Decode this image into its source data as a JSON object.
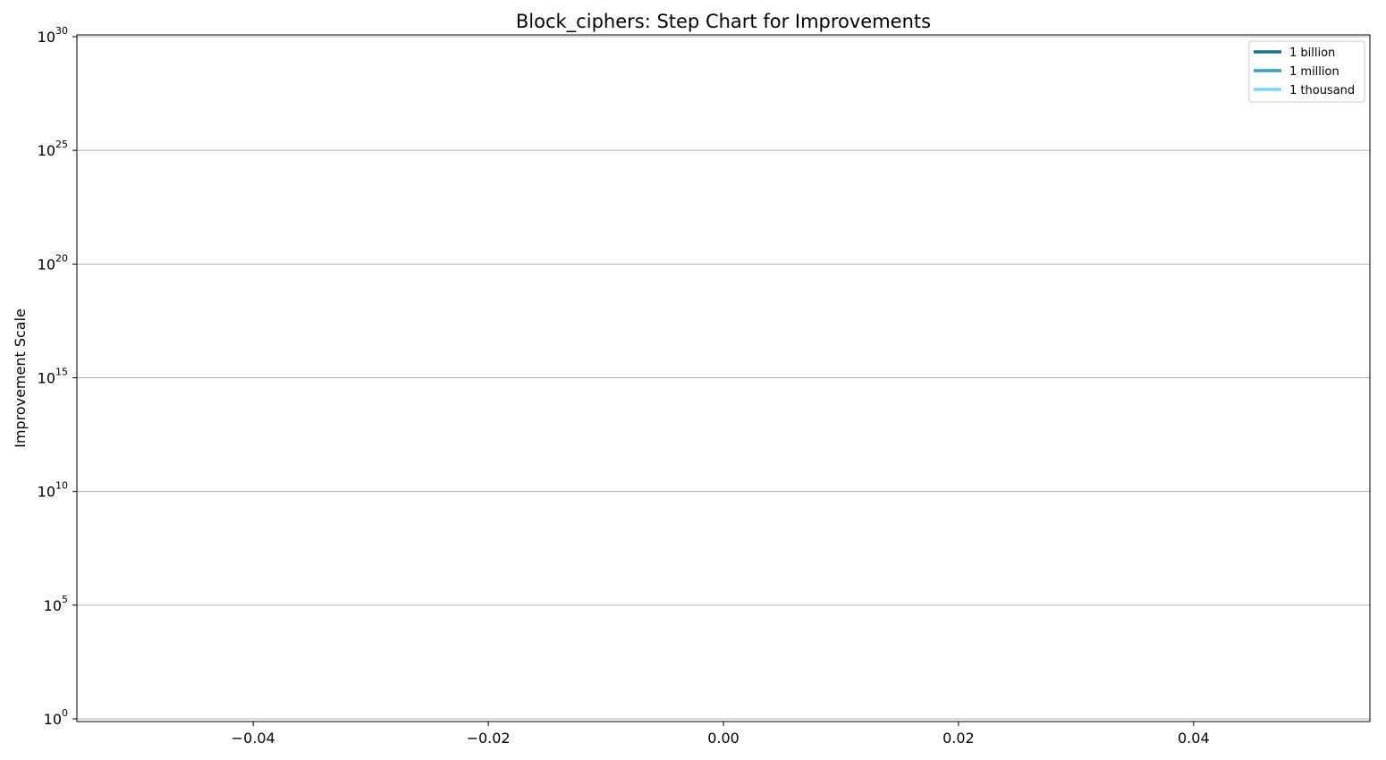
{
  "chart_data": {
    "type": "line",
    "title": "Block_ciphers: Step Chart for Improvements",
    "xlabel": "",
    "ylabel": "Improvement Scale",
    "y_scale": "log",
    "xlim": [
      -0.055,
      0.055
    ],
    "ylim_exponents": [
      0,
      30
    ],
    "x_ticks": [
      {
        "value": -0.04,
        "label": "−0.04"
      },
      {
        "value": -0.02,
        "label": "−0.02"
      },
      {
        "value": 0.0,
        "label": "0.00"
      },
      {
        "value": 0.02,
        "label": "0.02"
      },
      {
        "value": 0.04,
        "label": "0.04"
      }
    ],
    "y_ticks": [
      {
        "base": "10",
        "exp": "0",
        "value": 0
      },
      {
        "base": "10",
        "exp": "5",
        "value": 5
      },
      {
        "base": "10",
        "exp": "10",
        "value": 10
      },
      {
        "base": "10",
        "exp": "15",
        "value": 15
      },
      {
        "base": "10",
        "exp": "20",
        "value": 20
      },
      {
        "base": "10",
        "exp": "25",
        "value": 25
      },
      {
        "base": "10",
        "exp": "30",
        "value": 30
      }
    ],
    "grid": "y",
    "legend_position": "top-right",
    "series": [
      {
        "name": "1 billion",
        "color": "#1b6f8e",
        "values": []
      },
      {
        "name": "1 million",
        "color": "#3a9fbb",
        "values": []
      },
      {
        "name": "1 thousand",
        "color": "#7fd3f7",
        "values": []
      }
    ]
  }
}
